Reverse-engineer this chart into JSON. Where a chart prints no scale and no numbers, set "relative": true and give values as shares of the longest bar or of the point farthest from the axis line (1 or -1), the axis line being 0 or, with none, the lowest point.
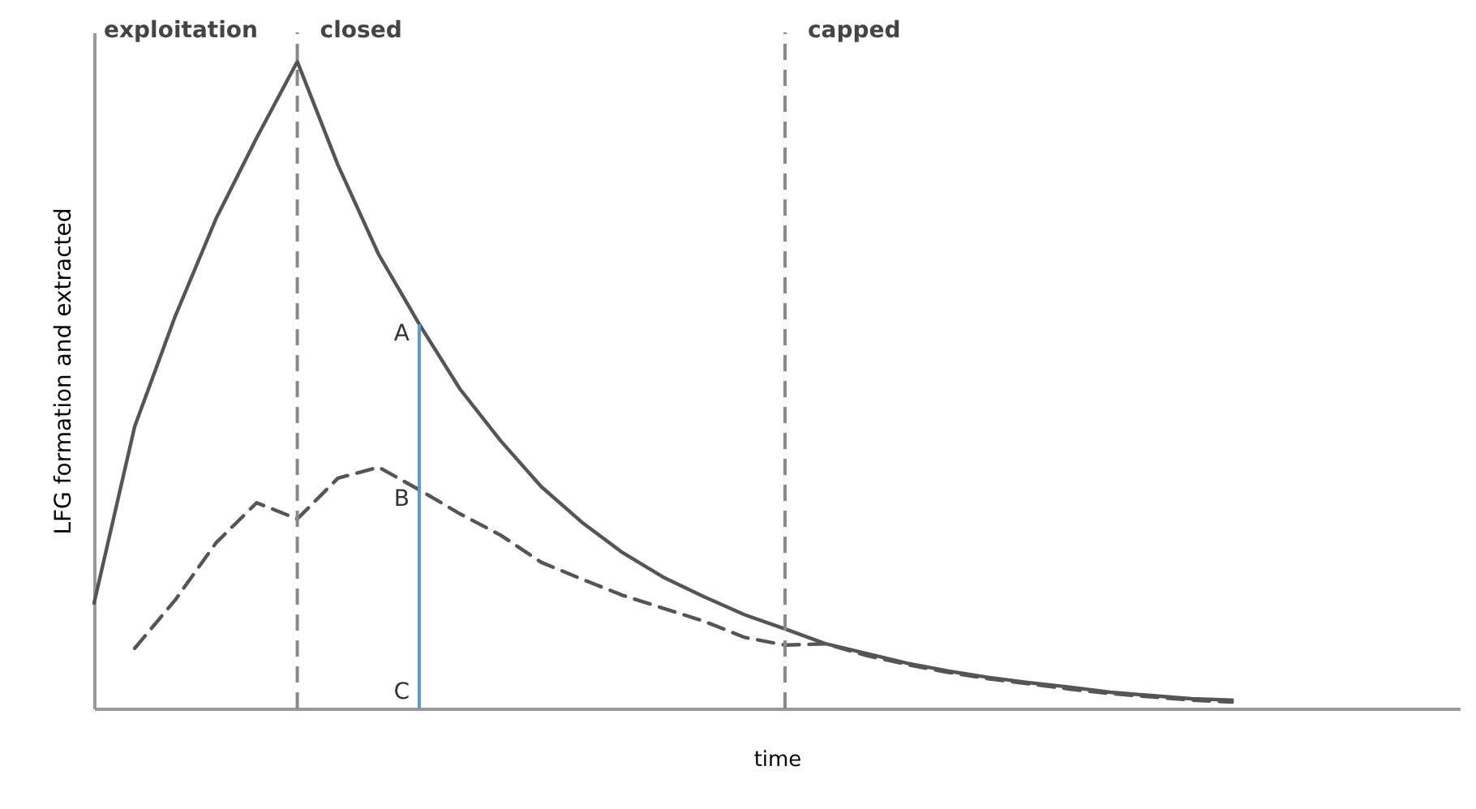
{
  "chart_data": {
    "type": "line",
    "relative": true,
    "xlabel": "time",
    "ylabel": "LFG formation and extracted",
    "categories": [
      null,
      null,
      null,
      null,
      null,
      null,
      null,
      null,
      null,
      null,
      null,
      null,
      null,
      null,
      null,
      null,
      null,
      null,
      null,
      null,
      null,
      null,
      null,
      null,
      null,
      null,
      null,
      null,
      null
    ],
    "series": [
      {
        "color": "#555555",
        "line_style": "solid",
        "values": [
          0.163,
          0.436,
          0.607,
          0.757,
          0.882,
          1.0,
          0.84,
          0.702,
          0.594,
          0.494,
          0.414,
          0.343,
          0.288,
          0.241,
          0.203,
          0.173,
          0.145,
          0.123,
          0.1,
          0.085,
          0.07,
          0.058,
          0.048,
          0.04,
          0.033,
          0.025,
          0.02,
          0.015,
          0.013
        ]
      },
      {
        "color": "#555555",
        "line_style": "dashed",
        "values": [
          null,
          0.093,
          0.168,
          0.256,
          0.318,
          0.293,
          0.356,
          0.373,
          0.338,
          0.301,
          0.268,
          0.226,
          0.2,
          0.175,
          0.155,
          0.135,
          0.11,
          0.098,
          0.1,
          0.082,
          0.068,
          0.056,
          0.046,
          0.038,
          0.03,
          0.023,
          0.018,
          0.013,
          0.01
        ]
      }
    ],
    "annotations": [
      "exploitation",
      "closed",
      "capped",
      "A",
      "B",
      "C"
    ],
    "tick_labels": false,
    "grid": false
  }
}
